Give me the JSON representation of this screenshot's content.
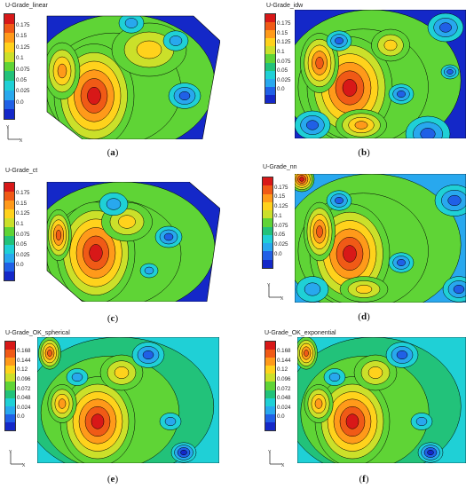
{
  "panels": [
    {
      "title": "U-Grade_linear",
      "caption_letter": "a",
      "ticks": [
        "0.175",
        "0.15",
        "0.125",
        "0.1",
        "0.075",
        "0.05",
        "0.025",
        "0.0"
      ],
      "colors": [
        "#d81818",
        "#f05a16",
        "#ff9a1a",
        "#ffd21c",
        "#cbe02a",
        "#5fd436",
        "#22c27a",
        "#1fd0d6",
        "#28a8ee",
        "#2060e6",
        "#1428c8"
      ]
    },
    {
      "title": "U-Grade_idw",
      "caption_letter": "b",
      "ticks": [
        "0.175",
        "0.15",
        "0.125",
        "0.1",
        "0.075",
        "0.05",
        "0.025",
        "0.0"
      ],
      "colors": [
        "#d81818",
        "#f05a16",
        "#ff9a1a",
        "#ffd21c",
        "#cbe02a",
        "#5fd436",
        "#22c27a",
        "#1fd0d6",
        "#28a8ee",
        "#2060e6",
        "#1428c8"
      ]
    },
    {
      "title": "U-Grade_ct",
      "caption_letter": "c",
      "ticks": [
        "0.175",
        "0.15",
        "0.125",
        "0.1",
        "0.075",
        "0.05",
        "0.025",
        "0.0"
      ],
      "colors": [
        "#d81818",
        "#f05a16",
        "#ff9a1a",
        "#ffd21c",
        "#cbe02a",
        "#5fd436",
        "#22c27a",
        "#1fd0d6",
        "#28a8ee",
        "#2060e6",
        "#1428c8"
      ]
    },
    {
      "title": "U-Grade_nn",
      "caption_letter": "d",
      "ticks": [
        "0.175",
        "0.15",
        "0.125",
        "0.1",
        "0.075",
        "0.05",
        "0.025",
        "0.0"
      ],
      "colors": [
        "#d81818",
        "#f05a16",
        "#ff9a1a",
        "#ffd21c",
        "#cbe02a",
        "#5fd436",
        "#22c27a",
        "#1fd0d6",
        "#28a8ee",
        "#2060e6",
        "#1428c8"
      ]
    },
    {
      "title": "U-Grade_OK_spherical",
      "caption_letter": "e",
      "ticks": [
        "0.168",
        "0.144",
        "0.12",
        "0.096",
        "0.072",
        "0.048",
        "0.024",
        "0.0"
      ],
      "colors": [
        "#d81818",
        "#f05a16",
        "#ff9a1a",
        "#ffd21c",
        "#cbe02a",
        "#5fd436",
        "#22c27a",
        "#1fd0d6",
        "#28a8ee",
        "#2060e6",
        "#1428c8"
      ]
    },
    {
      "title": "U-Grade_OK_exponential",
      "caption_letter": "f",
      "ticks": [
        "0.168",
        "0.144",
        "0.12",
        "0.096",
        "0.072",
        "0.048",
        "0.024",
        "0.0"
      ],
      "colors": [
        "#d81818",
        "#f05a16",
        "#ff9a1a",
        "#ffd21c",
        "#cbe02a",
        "#5fd436",
        "#22c27a",
        "#1fd0d6",
        "#28a8ee",
        "#2060e6",
        "#1428c8"
      ]
    }
  ],
  "axis_icon": {
    "y_label": "Y",
    "x_label": "X"
  }
}
